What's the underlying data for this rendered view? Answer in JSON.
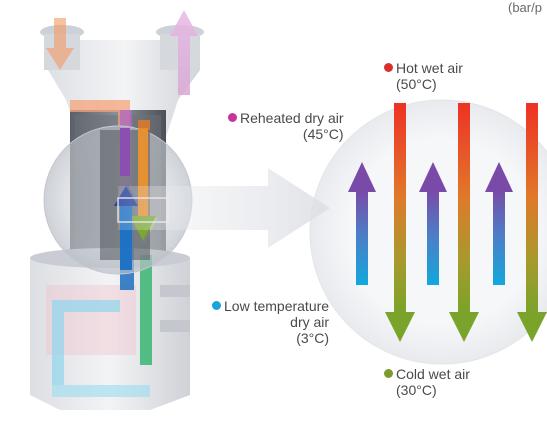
{
  "corner_text": "(bar/p",
  "labels": {
    "hot_wet_air": {
      "name": "Hot wet air",
      "temp": "(50°C)",
      "color": "#d9302c"
    },
    "reheated_dry_air": {
      "name": "Reheated dry air",
      "temp": "(45°C)",
      "color": "#c8359a"
    },
    "low_temp_dry_air": {
      "line1": "Low temperature",
      "line2": "dry air",
      "temp": "(3°C)",
      "color": "#1aa3df"
    },
    "cold_wet_air": {
      "name": "Cold wet air",
      "temp": "(30°C)",
      "color": "#7d9b2c"
    }
  },
  "colors": {
    "hot": "#ee3a2a",
    "warm_mid": "#e07b2a",
    "cold_green": "#7aa32a",
    "purple": "#7a4aa8",
    "cyan": "#12a8dc"
  }
}
